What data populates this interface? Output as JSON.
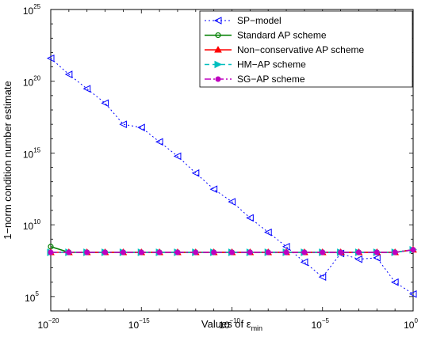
{
  "chart_data": {
    "type": "line",
    "xlabel": "Values of ε",
    "xlabel_sub": "min",
    "ylabel": "1−norm condition number estimate",
    "x_scale": "log",
    "y_scale": "log",
    "xlim": [
      1e-20,
      1
    ],
    "ylim": [
      10000.0,
      1e+25
    ],
    "grid": false,
    "legend_position": "top-right",
    "x_ticks": [
      {
        "base": "10",
        "exp": "−20",
        "value": 1e-20
      },
      {
        "base": "10",
        "exp": "−15",
        "value": 1e-15
      },
      {
        "base": "10",
        "exp": "−10",
        "value": 1e-10
      },
      {
        "base": "10",
        "exp": "−5",
        "value": 1e-05
      },
      {
        "base": "10",
        "exp": "0",
        "value": 1
      }
    ],
    "y_ticks": [
      {
        "base": "10",
        "exp": "5",
        "value": 100000.0
      },
      {
        "base": "10",
        "exp": "10",
        "value": 10000000000.0
      },
      {
        "base": "10",
        "exp": "15",
        "value": 1000000000000000.0
      },
      {
        "base": "10",
        "exp": "20",
        "value": 1e+20
      },
      {
        "base": "10",
        "exp": "25",
        "value": 1e+25
      }
    ],
    "x": [
      1e-20,
      1e-19,
      1e-18,
      1e-17,
      1e-16,
      1e-15,
      1e-14,
      1e-13,
      1e-12,
      1e-11,
      1e-10,
      1e-09,
      1e-08,
      1e-07,
      1e-06,
      1e-05,
      0.0001,
      0.001,
      0.01,
      0.1,
      1
    ],
    "series": [
      {
        "name": "SP−model",
        "color": "#0000ff",
        "dash": "2,3",
        "marker": "triangle-left",
        "values": [
          4e+21,
          3e+20,
          3e+19,
          3e+18,
          1e+17,
          6e+16,
          6000000000000000.0,
          600000000000000.0,
          40000000000000.0,
          3000000000000.0,
          400000000000.0,
          30000000000.0,
          3000000000.0,
          300000000.0,
          25000000.0,
          2300000.0,
          100000000.0,
          40000000.0,
          50000000.0,
          1000000.0,
          150000.0
        ]
      },
      {
        "name": "Standard AP scheme",
        "color": "#007f00",
        "dash": "",
        "marker": "circle",
        "values": [
          300000000.0,
          120000000.0,
          120000000.0,
          120000000.0,
          120000000.0,
          120000000.0,
          120000000.0,
          120000000.0,
          120000000.0,
          120000000.0,
          120000000.0,
          120000000.0,
          120000000.0,
          120000000.0,
          120000000.0,
          120000000.0,
          120000000.0,
          120000000.0,
          120000000.0,
          120000000.0,
          180000000.0
        ]
      },
      {
        "name": "Non−conservative AP scheme",
        "color": "#ff0000",
        "dash": "",
        "marker": "triangle-up",
        "values": [
          120000000.0,
          120000000.0,
          120000000.0,
          120000000.0,
          120000000.0,
          120000000.0,
          120000000.0,
          120000000.0,
          120000000.0,
          120000000.0,
          120000000.0,
          120000000.0,
          120000000.0,
          120000000.0,
          120000000.0,
          120000000.0,
          120000000.0,
          120000000.0,
          120000000.0,
          120000000.0,
          180000000.0
        ]
      },
      {
        "name": "HM−AP scheme",
        "color": "#00bfbf",
        "dash": "6,4",
        "marker": "triangle-right",
        "values": [
          120000000.0,
          120000000.0,
          120000000.0,
          120000000.0,
          120000000.0,
          120000000.0,
          120000000.0,
          120000000.0,
          120000000.0,
          120000000.0,
          120000000.0,
          120000000.0,
          120000000.0,
          120000000.0,
          120000000.0,
          120000000.0,
          120000000.0,
          120000000.0,
          120000000.0,
          120000000.0,
          180000000.0
        ]
      },
      {
        "name": "SG−AP scheme",
        "color": "#bf00bf",
        "dash": "8,3,2,3",
        "marker": "circle-filled",
        "values": [
          120000000.0,
          120000000.0,
          120000000.0,
          120000000.0,
          120000000.0,
          120000000.0,
          120000000.0,
          120000000.0,
          120000000.0,
          120000000.0,
          120000000.0,
          120000000.0,
          120000000.0,
          120000000.0,
          120000000.0,
          120000000.0,
          120000000.0,
          120000000.0,
          120000000.0,
          120000000.0,
          180000000.0
        ]
      }
    ]
  }
}
